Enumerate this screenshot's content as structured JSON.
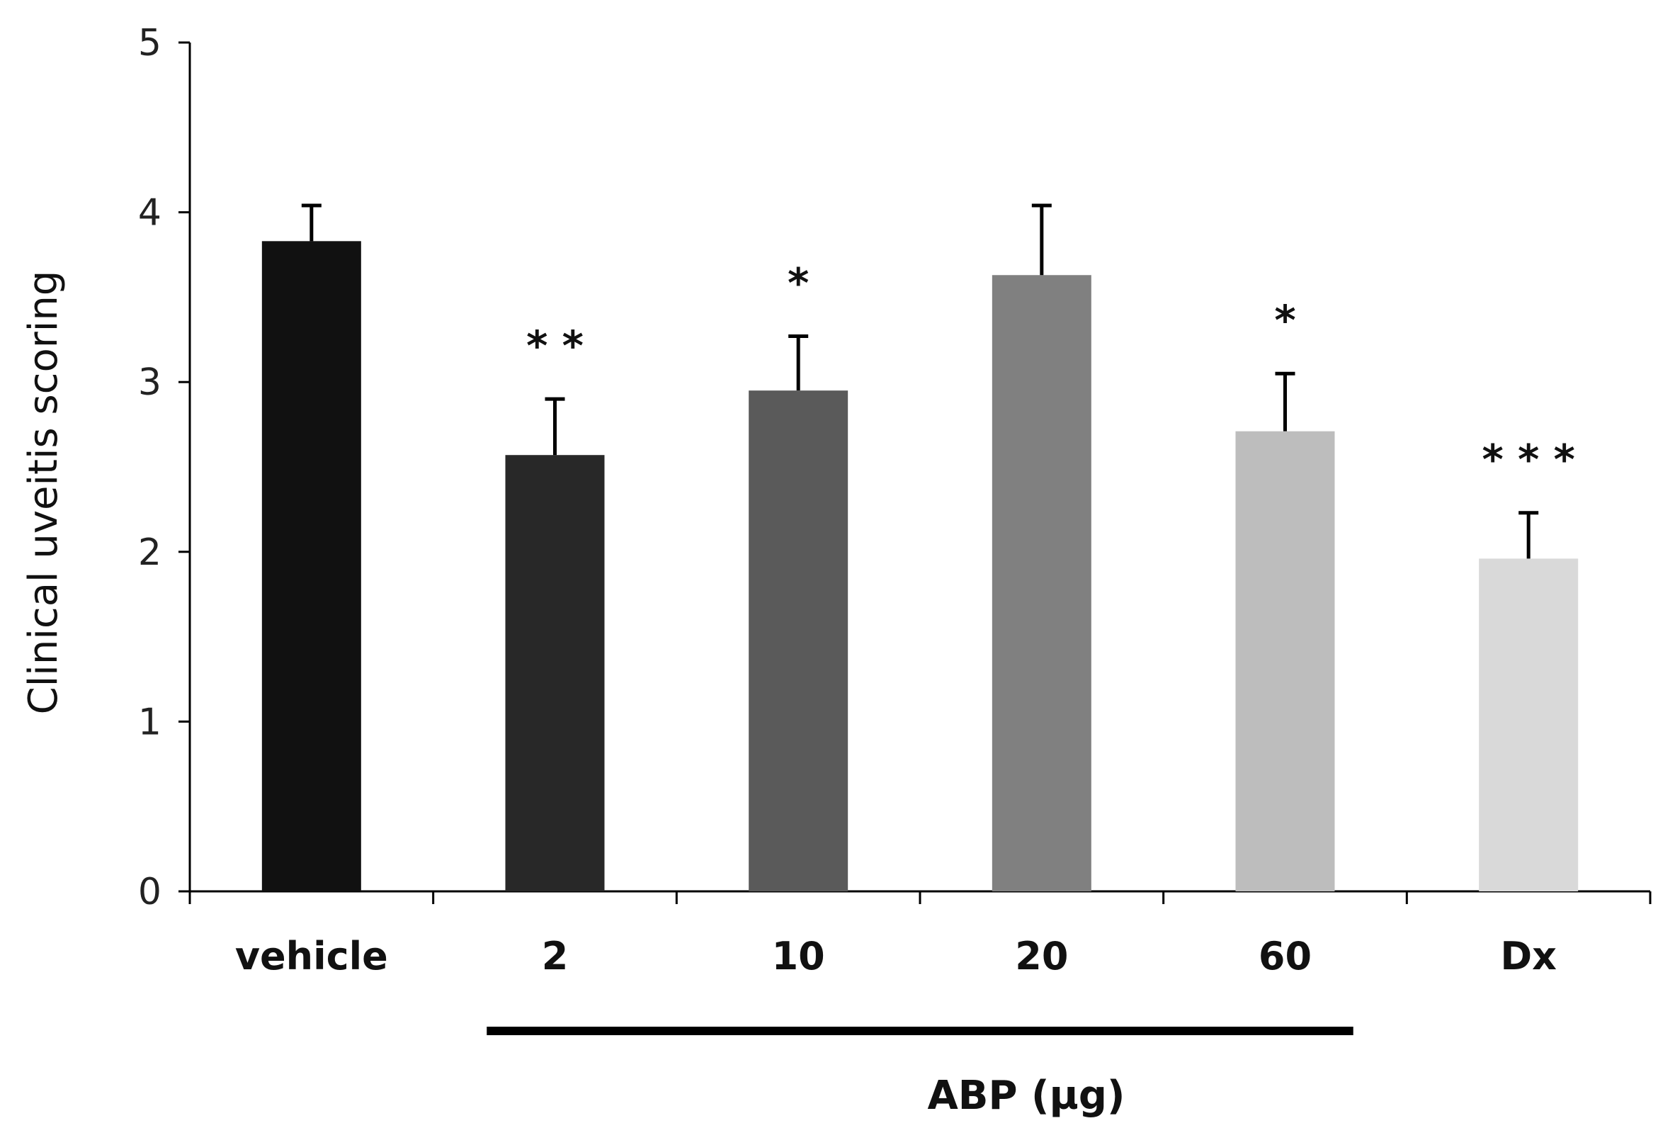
{
  "chart_data": {
    "type": "bar",
    "title": "",
    "xlabel": "",
    "ylabel": "Clinical uveitis scoring",
    "ylim": [
      0,
      5
    ],
    "yticks": [
      "0",
      "1",
      "2",
      "3",
      "4",
      "5"
    ],
    "categories": [
      "vehicle",
      "2",
      "10",
      "20",
      "60",
      "Dx"
    ],
    "values": [
      3.83,
      2.57,
      2.95,
      3.63,
      2.71,
      1.96
    ],
    "errors": [
      0.21,
      0.33,
      0.32,
      0.41,
      0.34,
      0.27
    ],
    "bar_colors": [
      "#111111",
      "#282828",
      "#5a5a5a",
      "#808080",
      "#bdbdbd",
      "#d9d9d9"
    ],
    "significance": [
      "",
      "**",
      "*",
      "",
      "*",
      "***"
    ],
    "group": {
      "label": "ABP (µg)",
      "start_index": 1,
      "end_index": 4
    }
  }
}
